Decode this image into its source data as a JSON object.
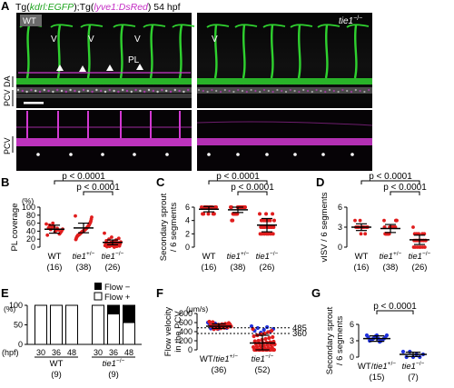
{
  "colors": {
    "green": "#2fd12f",
    "magenta": "#d238d2",
    "red": "#e01d1d",
    "blue": "#2233dd"
  },
  "panel_a": {
    "letter": "A",
    "title": {
      "p1": "Tg(",
      "g": "kdrl:EGFP",
      "p2": ");Tg(",
      "m": "lyve1:DsRed",
      "p3": ") 54 hpf"
    },
    "wt": "WT",
    "mut": "tie1",
    "mut_sup": "−/−",
    "labels": {
      "v": "V",
      "pl": "PL",
      "pcv_da": "PCV DA",
      "pcv": "PCV"
    }
  },
  "chart_data": [
    {
      "id": "B",
      "type": "scatter",
      "title": "",
      "xlabel": "",
      "ylabel": "PL coverage",
      "yunit": "(%)",
      "ylim": [
        0,
        100
      ],
      "yticks": [
        "0",
        "20",
        "40",
        "60",
        "80",
        "100"
      ],
      "categories": [
        "WT",
        "tie1+/−",
        "tie1−/−"
      ],
      "cat_main": [
        "WT",
        "tie1",
        "tie1"
      ],
      "cat_sup": [
        "",
        "+/−",
        "−/−"
      ],
      "n": [
        "(16)",
        "(38)",
        "(26)"
      ],
      "means": [
        45,
        48,
        12
      ],
      "errors": [
        10,
        12,
        6
      ],
      "points": [
        [
          58,
          50,
          47,
          45,
          44,
          42,
          40,
          55,
          38,
          36,
          48,
          51,
          33,
          30,
          60,
          43
        ],
        [
          78,
          75,
          70,
          65,
          62,
          60,
          58,
          55,
          54,
          52,
          50,
          50,
          48,
          47,
          46,
          45,
          44,
          43,
          42,
          41,
          40,
          40,
          39,
          38,
          37,
          36,
          35,
          34,
          33,
          32,
          31,
          30,
          30,
          28,
          27,
          25,
          22,
          19
        ],
        [
          35,
          25,
          22,
          20,
          18,
          16,
          14,
          13,
          12,
          11,
          10,
          10,
          9,
          8,
          8,
          7,
          6,
          5,
          5,
          4,
          4,
          3,
          2,
          2,
          1,
          0
        ]
      ],
      "sig": [
        {
          "label": "p < 0.0001",
          "from": 0,
          "to": 2
        },
        {
          "label": "p < 0.0001",
          "from": 1,
          "to": 2
        }
      ]
    },
    {
      "id": "C",
      "type": "scatter",
      "title": "",
      "xlabel": "",
      "ylabel": [
        "Secondary sprout",
        "/ 6 segments"
      ],
      "ylim": [
        0,
        6
      ],
      "yticks": [
        "0",
        "2",
        "4",
        "6"
      ],
      "categories": [
        "WT",
        "tie1+/−",
        "tie1−/−"
      ],
      "cat_main": [
        "WT",
        "tie1",
        "tie1"
      ],
      "cat_sup": [
        "",
        "+/−",
        "−/−"
      ],
      "n": [
        "(16)",
        "(38)",
        "(26)"
      ],
      "means": [
        5.7,
        5.6,
        3.3
      ],
      "errors": [
        0.4,
        0.4,
        1.0
      ],
      "points": [
        [
          6,
          6,
          6,
          6,
          6,
          6,
          6,
          6,
          6,
          5,
          5,
          5,
          5,
          5,
          6,
          6
        ],
        [
          6,
          6,
          6,
          6,
          6,
          6,
          6,
          6,
          6,
          6,
          6,
          6,
          6,
          6,
          6,
          6,
          6,
          6,
          6,
          6,
          6,
          5,
          5,
          5,
          5,
          5,
          5,
          5,
          5,
          5,
          5,
          5,
          5,
          4,
          4,
          4,
          6,
          6
        ],
        [
          5,
          5,
          5,
          4,
          4,
          4,
          4,
          4,
          4,
          3,
          3,
          3,
          3,
          3,
          3,
          3,
          3,
          3,
          3,
          2,
          2,
          2,
          2,
          2,
          2,
          2
        ]
      ],
      "sig": [
        {
          "label": "p < 0.0001",
          "from": 0,
          "to": 2
        },
        {
          "label": "p < 0.0001",
          "from": 1,
          "to": 2
        }
      ]
    },
    {
      "id": "D",
      "type": "scatter",
      "title": "",
      "xlabel": "",
      "ylabel": "vISV / 6 segments",
      "ylim": [
        0,
        6
      ],
      "yticks": [
        "0",
        "3",
        "6"
      ],
      "categories": [
        "WT",
        "tie1+/−",
        "tie1−/−"
      ],
      "cat_main": [
        "WT",
        "tie1",
        "tie1"
      ],
      "cat_sup": [
        "",
        "+/−",
        "−/−"
      ],
      "n": [
        "(16)",
        "(38)",
        "(26)"
      ],
      "means": [
        3.0,
        2.8,
        1.1
      ],
      "errors": [
        0.5,
        0.6,
        0.7
      ],
      "points": [
        [
          4,
          3,
          3,
          3,
          3,
          3,
          3,
          3,
          3,
          3,
          3,
          2,
          2,
          3,
          4,
          3
        ],
        [
          4,
          4,
          4,
          4,
          4,
          3,
          3,
          3,
          3,
          3,
          3,
          3,
          3,
          3,
          3,
          3,
          3,
          3,
          3,
          3,
          3,
          3,
          3,
          2,
          2,
          2,
          2,
          2,
          2,
          2,
          2,
          2,
          2,
          2,
          2,
          2,
          3,
          3
        ],
        [
          3,
          2,
          2,
          2,
          2,
          2,
          1,
          1,
          1,
          1,
          1,
          1,
          1,
          1,
          1,
          1,
          1,
          1,
          1,
          0,
          0,
          0,
          0,
          0,
          0,
          0
        ]
      ],
      "sig": [
        {
          "label": "p < 0.0001",
          "from": 0,
          "to": 2
        },
        {
          "label": "p < 0.0001",
          "from": 1,
          "to": 2
        }
      ]
    },
    {
      "id": "E",
      "type": "bar",
      "stacked": true,
      "title": "",
      "xlabel": "",
      "ylabel": "",
      "yunit": "(%)",
      "ylim": [
        0,
        100
      ],
      "yticks": [
        "0",
        "50",
        "100"
      ],
      "x_prefix": "(hpf)",
      "categories": [
        "30",
        "36",
        "48",
        "30",
        "36",
        "48"
      ],
      "groups": [
        {
          "name": "WT",
          "main": "WT",
          "sup": "",
          "n": "(9)"
        },
        {
          "name": "tie1−/−",
          "main": "tie1",
          "sup": "−/−",
          "n": "(9)"
        }
      ],
      "series": [
        {
          "name": "Flow −",
          "values": [
            0,
            0,
            0,
            0,
            22,
            44
          ]
        },
        {
          "name": "Flow +",
          "values": [
            100,
            100,
            100,
            100,
            78,
            56
          ]
        }
      ],
      "legend": "top-right"
    },
    {
      "id": "F",
      "type": "scatter",
      "title": "",
      "xlabel": "",
      "ylabel": [
        "Flow velocity",
        "in the PCV"
      ],
      "yunit": "(μm/s)",
      "ylim": [
        0,
        800
      ],
      "yticks": [
        "0",
        "200",
        "400",
        "600",
        "800"
      ],
      "categories": [
        "WT/tie1+/−",
        "tie1−/−"
      ],
      "n": [
        "(36)",
        "(52)"
      ],
      "means": [
        520,
        150
      ],
      "errors": [
        50,
        170
      ],
      "ref_lines": [
        {
          "value": 485,
          "label": "485"
        },
        {
          "value": 360,
          "label": "360"
        }
      ],
      "points_blue": [
        [
          600,
          580,
          560,
          540,
          530,
          520,
          510,
          500,
          490,
          480,
          470,
          460,
          550,
          570,
          535,
          505
        ],
        [
          520,
          500,
          480,
          460,
          440,
          420,
          400,
          380
        ]
      ],
      "points_red": [
        [
          620,
          590,
          575,
          565,
          555,
          545,
          525,
          515,
          495,
          485,
          475,
          465,
          455,
          540,
          560,
          530,
          510,
          500,
          490,
          610
        ],
        [
          460,
          420,
          390,
          360,
          340,
          320,
          300,
          280,
          260,
          240,
          220,
          200,
          190,
          180,
          170,
          160,
          150,
          140,
          130,
          120,
          110,
          100,
          90,
          80,
          70,
          60,
          50,
          40,
          30,
          20,
          10,
          0,
          0,
          0,
          0,
          0,
          0,
          0,
          0,
          0,
          0,
          0,
          0,
          0
        ]
      ]
    },
    {
      "id": "G",
      "type": "scatter",
      "title": "",
      "xlabel": "",
      "ylabel": [
        "Secondary sprout",
        "/ 6 segments"
      ],
      "ylim": [
        0,
        6
      ],
      "yticks": [
        "0",
        "3",
        "6"
      ],
      "categories": [
        "WT/tie1+/−",
        "tie1−/−"
      ],
      "n": [
        "(15)",
        "(7)"
      ],
      "means": [
        3.4,
        0.5
      ],
      "errors": [
        0.5,
        0.4
      ],
      "points": [
        [
          4,
          4,
          4,
          3.8,
          3.6,
          3.5,
          3.4,
          3.3,
          3.2,
          3.1,
          3,
          3,
          2.8,
          3.6,
          3.4
        ],
        [
          1,
          1,
          0.5,
          0.5,
          0,
          0,
          0
        ]
      ],
      "sig": [
        {
          "label": "p < 0.0001",
          "from": 0,
          "to": 1
        }
      ]
    }
  ]
}
